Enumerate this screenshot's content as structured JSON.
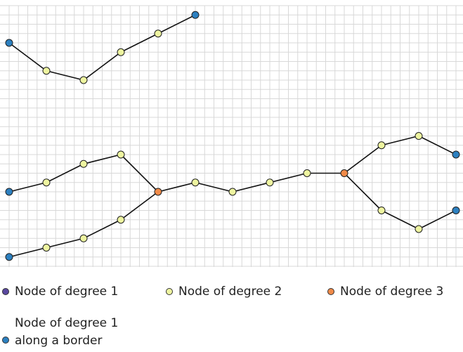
{
  "colors": {
    "degree_1": "#5a48a0",
    "degree_2": "#eef5a0",
    "degree_3": "#f08a48",
    "border_degree_1": "#2c80c0",
    "grid": "#d8d8d8",
    "edge": "#111111"
  },
  "legend": {
    "degree_1": "Node of degree 1",
    "degree_2": "Node of degree 2",
    "degree_3": "Node of degree 3",
    "border_line1": "Node of degree 1",
    "border_line2": "along a border"
  },
  "graph": {
    "nodes": [
      {
        "id": "a1",
        "c": 0,
        "r": 4,
        "type": "border"
      },
      {
        "id": "a2",
        "c": 4,
        "r": 7,
        "type": "deg2"
      },
      {
        "id": "a3",
        "c": 8,
        "r": 8,
        "type": "deg2"
      },
      {
        "id": "a4",
        "c": 12,
        "r": 5,
        "type": "deg2"
      },
      {
        "id": "a5",
        "c": 16,
        "r": 3,
        "type": "deg2"
      },
      {
        "id": "a6",
        "c": 20,
        "r": 1,
        "type": "border"
      },
      {
        "id": "b1",
        "c": 0,
        "r": 20,
        "type": "border"
      },
      {
        "id": "b2",
        "c": 4,
        "r": 19,
        "type": "deg2"
      },
      {
        "id": "b3",
        "c": 8,
        "r": 17,
        "type": "deg2"
      },
      {
        "id": "b4",
        "c": 12,
        "r": 16,
        "type": "deg2"
      },
      {
        "id": "b5",
        "c": 16,
        "r": 20,
        "type": "deg3"
      },
      {
        "id": "c1",
        "c": 0,
        "r": 27,
        "type": "border"
      },
      {
        "id": "c2",
        "c": 4,
        "r": 26,
        "type": "deg2"
      },
      {
        "id": "c3",
        "c": 8,
        "r": 25,
        "type": "deg2"
      },
      {
        "id": "c4",
        "c": 12,
        "r": 23,
        "type": "deg2"
      },
      {
        "id": "m1",
        "c": 20,
        "r": 19,
        "type": "deg2"
      },
      {
        "id": "m2",
        "c": 24,
        "r": 20,
        "type": "deg2"
      },
      {
        "id": "m3",
        "c": 28,
        "r": 19,
        "type": "deg2"
      },
      {
        "id": "m4",
        "c": 32,
        "r": 18,
        "type": "deg2"
      },
      {
        "id": "m5",
        "c": 36,
        "r": 18,
        "type": "deg3"
      },
      {
        "id": "u1",
        "c": 40,
        "r": 15,
        "type": "deg2"
      },
      {
        "id": "u2",
        "c": 44,
        "r": 14,
        "type": "deg2"
      },
      {
        "id": "u3",
        "c": 48,
        "r": 16,
        "type": "border"
      },
      {
        "id": "l1",
        "c": 40,
        "r": 22,
        "type": "deg2"
      },
      {
        "id": "l2",
        "c": 44,
        "r": 24,
        "type": "deg2"
      },
      {
        "id": "l3",
        "c": 48,
        "r": 22,
        "type": "border"
      }
    ],
    "edges": [
      [
        "a1",
        "a2"
      ],
      [
        "a2",
        "a3"
      ],
      [
        "a3",
        "a4"
      ],
      [
        "a4",
        "a5"
      ],
      [
        "a5",
        "a6"
      ],
      [
        "b1",
        "b2"
      ],
      [
        "b2",
        "b3"
      ],
      [
        "b3",
        "b4"
      ],
      [
        "b4",
        "b5"
      ],
      [
        "c1",
        "c2"
      ],
      [
        "c2",
        "c3"
      ],
      [
        "c3",
        "c4"
      ],
      [
        "c4",
        "b5"
      ],
      [
        "b5",
        "m1"
      ],
      [
        "m1",
        "m2"
      ],
      [
        "m2",
        "m3"
      ],
      [
        "m3",
        "m4"
      ],
      [
        "m4",
        "m5"
      ],
      [
        "m5",
        "u1"
      ],
      [
        "u1",
        "u2"
      ],
      [
        "u2",
        "u3"
      ],
      [
        "m5",
        "l1"
      ],
      [
        "l1",
        "l2"
      ],
      [
        "l2",
        "l3"
      ]
    ]
  }
}
